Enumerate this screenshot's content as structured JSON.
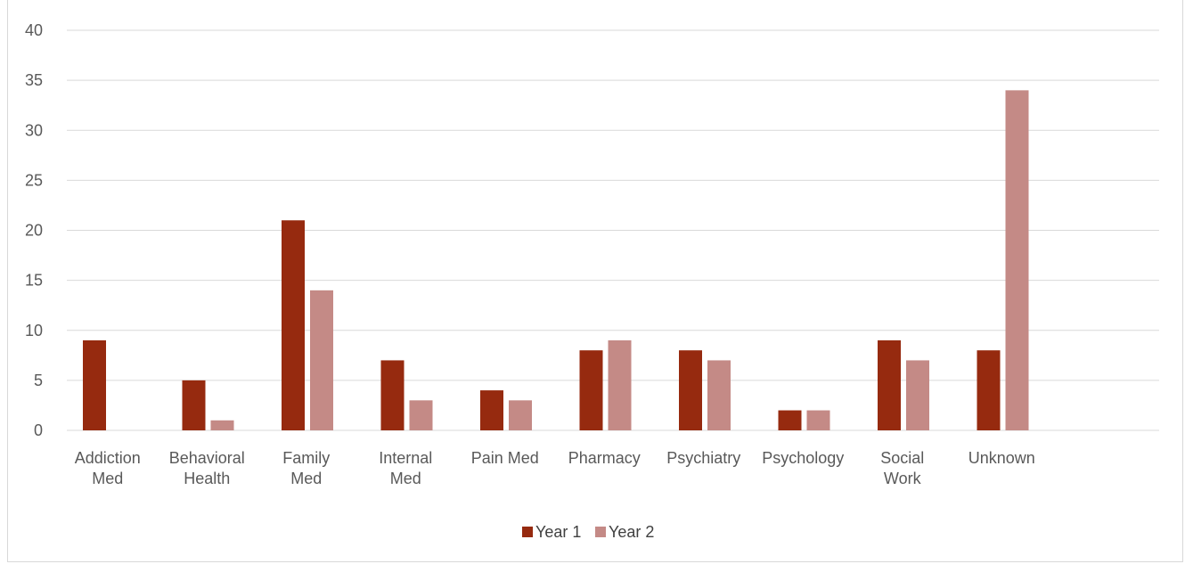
{
  "chart_data": {
    "type": "bar",
    "title": "",
    "xlabel": "",
    "ylabel": "",
    "ylim": [
      0,
      40
    ],
    "yticks": [
      0,
      5,
      10,
      15,
      20,
      25,
      30,
      35,
      40
    ],
    "grid": true,
    "legend_position": "bottom",
    "categories": [
      [
        "Addiction",
        "Med"
      ],
      [
        "Behavioral",
        "Health"
      ],
      [
        "Family",
        "Med"
      ],
      [
        "Internal",
        "Med"
      ],
      [
        "Pain Med"
      ],
      [
        "Pharmacy"
      ],
      [
        "Psychiatry"
      ],
      [
        "Psychology"
      ],
      [
        "Social",
        "Work"
      ],
      [
        "Unknown"
      ]
    ],
    "series": [
      {
        "name": "Year 1",
        "color": "#962a0f",
        "values": [
          9,
          5,
          21,
          7,
          4,
          8,
          8,
          2,
          9,
          8
        ]
      },
      {
        "name": "Year 2",
        "color": "#c48a86",
        "values": [
          0,
          1,
          14,
          3,
          3,
          9,
          7,
          2,
          7,
          34
        ]
      }
    ]
  }
}
